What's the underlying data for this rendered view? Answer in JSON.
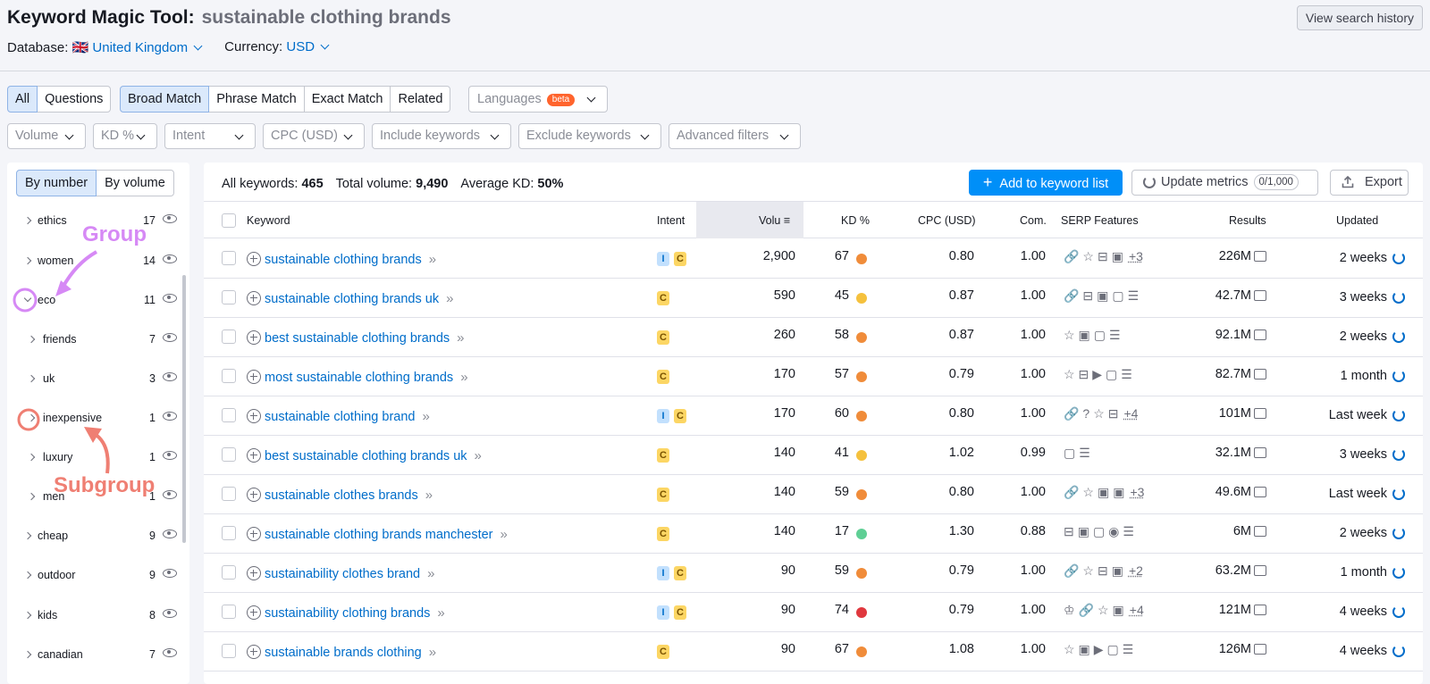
{
  "header": {
    "tool_name": "Keyword Magic Tool:",
    "query": "sustainable clothing brands",
    "database_label": "Database:",
    "database_flag": "🇬🇧",
    "database_value": "United Kingdom",
    "currency_label": "Currency:",
    "currency_value": "USD",
    "history_button": "View search history"
  },
  "tabs": {
    "scope": [
      "All",
      "Questions"
    ],
    "match": [
      "Broad Match",
      "Phrase Match",
      "Exact Match",
      "Related"
    ],
    "languages": "Languages",
    "beta": "beta"
  },
  "filters": [
    "Volume",
    "KD %",
    "Intent",
    "CPC (USD)",
    "Include keywords",
    "Exclude keywords",
    "Advanced filters"
  ],
  "sidebar": {
    "sort_by_number": "By number",
    "sort_by_volume": "By volume",
    "groups": [
      {
        "label": "ethics",
        "count": "17"
      },
      {
        "label": "women",
        "count": "14"
      },
      {
        "label": "eco",
        "count": "11"
      },
      {
        "label": "friends",
        "count": "7"
      },
      {
        "label": "uk",
        "count": "3"
      },
      {
        "label": "inexpensive",
        "count": "1"
      },
      {
        "label": "luxury",
        "count": "1"
      },
      {
        "label": "men",
        "count": "1"
      },
      {
        "label": "cheap",
        "count": "9"
      },
      {
        "label": "outdoor",
        "count": "9"
      },
      {
        "label": "kids",
        "count": "8"
      },
      {
        "label": "canadian",
        "count": "7"
      }
    ],
    "annotation_group": "Group",
    "annotation_subgroup": "Subgroup",
    "annotation_group_color": "#d689f5",
    "annotation_subgroup_color": "#ef7f73"
  },
  "summary": {
    "all_keywords_label": "All keywords:",
    "all_keywords": "465",
    "total_volume_label": "Total volume:",
    "total_volume": "9,490",
    "avg_kd_label": "Average KD:",
    "avg_kd": "50%"
  },
  "actions": {
    "add": "Add to keyword list",
    "update": "Update metrics",
    "update_count": "0/1,000",
    "export": "Export"
  },
  "table": {
    "columns": [
      "Keyword",
      "Intent",
      "Volu",
      "KD %",
      "CPC (USD)",
      "Com.",
      "SERP Features",
      "Results",
      "Updated"
    ],
    "rows": [
      {
        "keyword": "sustainable clothing brands",
        "intent": [
          "I",
          "C"
        ],
        "volume": "2,900",
        "kd": "67",
        "kd_color": "#f08c3a",
        "cpc": "0.80",
        "com": "1.00",
        "serp": "🔗☆⊟▣",
        "serp_more": "+3",
        "results": "226M",
        "updated": "2 weeks"
      },
      {
        "keyword": "sustainable clothing brands uk",
        "intent": [
          "C"
        ],
        "volume": "590",
        "kd": "45",
        "kd_color": "#f5c13d",
        "cpc": "0.87",
        "com": "1.00",
        "serp": "🔗⊟▣▢☰",
        "serp_more": "",
        "results": "42.7M",
        "updated": "3 weeks"
      },
      {
        "keyword": "best sustainable clothing brands",
        "intent": [
          "C"
        ],
        "volume": "260",
        "kd": "58",
        "kd_color": "#f08c3a",
        "cpc": "0.87",
        "com": "1.00",
        "serp": "☆▣▢☰",
        "serp_more": "",
        "results": "92.1M",
        "updated": "2 weeks"
      },
      {
        "keyword": "most sustainable clothing brands",
        "intent": [
          "C"
        ],
        "volume": "170",
        "kd": "57",
        "kd_color": "#f08c3a",
        "cpc": "0.79",
        "com": "1.00",
        "serp": "☆⊟▶▢☰",
        "serp_more": "",
        "results": "82.7M",
        "updated": "1 month"
      },
      {
        "keyword": "sustainable clothing brand",
        "intent": [
          "I",
          "C"
        ],
        "volume": "170",
        "kd": "60",
        "kd_color": "#f08c3a",
        "cpc": "0.80",
        "com": "1.00",
        "serp": "🔗?☆⊟",
        "serp_more": "+4",
        "results": "101M",
        "updated": "Last week"
      },
      {
        "keyword": "best sustainable clothing brands uk",
        "intent": [
          "C"
        ],
        "volume": "140",
        "kd": "41",
        "kd_color": "#f5c13d",
        "cpc": "1.02",
        "com": "0.99",
        "serp": "▢☰",
        "serp_more": "",
        "results": "32.1M",
        "updated": "3 weeks"
      },
      {
        "keyword": "sustainable clothes brands",
        "intent": [
          "C"
        ],
        "volume": "140",
        "kd": "59",
        "kd_color": "#f08c3a",
        "cpc": "0.80",
        "com": "1.00",
        "serp": "🔗☆▣▣",
        "serp_more": "+3",
        "results": "49.6M",
        "updated": "Last week"
      },
      {
        "keyword": "sustainable clothing brands manchester",
        "intent": [
          "C"
        ],
        "volume": "140",
        "kd": "17",
        "kd_color": "#5fcf95",
        "cpc": "1.30",
        "com": "0.88",
        "serp": "⊟▣▢◉☰",
        "serp_more": "",
        "results": "6M",
        "updated": "2 weeks"
      },
      {
        "keyword": "sustainability clothes brand",
        "intent": [
          "I",
          "C"
        ],
        "volume": "90",
        "kd": "59",
        "kd_color": "#f08c3a",
        "cpc": "0.79",
        "com": "1.00",
        "serp": "🔗☆⊟▣",
        "serp_more": "+2",
        "results": "63.2M",
        "updated": "1 month"
      },
      {
        "keyword": "sustainability clothing brands",
        "intent": [
          "I",
          "C"
        ],
        "volume": "90",
        "kd": "74",
        "kd_color": "#e0383e",
        "cpc": "0.79",
        "com": "1.00",
        "serp": "♔🔗☆▣",
        "serp_more": "+4",
        "results": "121M",
        "updated": "4 weeks"
      },
      {
        "keyword": "sustainable brands clothing",
        "intent": [
          "C"
        ],
        "volume": "90",
        "kd": "67",
        "kd_color": "#f08c3a",
        "cpc": "1.08",
        "com": "1.00",
        "serp": "☆▣▶▢☰",
        "serp_more": "",
        "results": "126M",
        "updated": "4 weeks"
      }
    ]
  }
}
